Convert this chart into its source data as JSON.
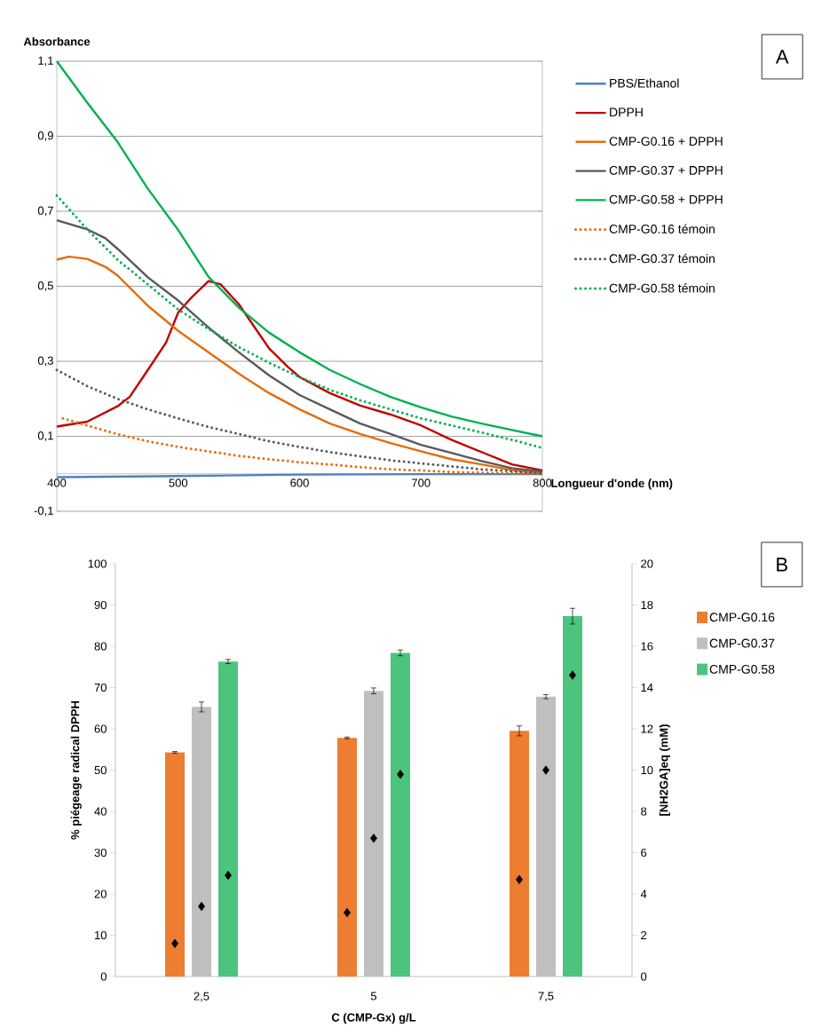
{
  "chart_data": [
    {
      "type": "line",
      "xlabel": "Longueur d'onde (nm)",
      "ylabel": "Absorbance",
      "annotations": [
        "A"
      ],
      "xlim": [
        400,
        800
      ],
      "ylim": [
        -0.1,
        1.1
      ],
      "xticks": [
        400,
        500,
        600,
        700,
        800
      ],
      "yticks": [
        {
          "value": -0.1,
          "label": "-0,1"
        },
        {
          "value": 0.1,
          "label": "0,1"
        },
        {
          "value": 0.3,
          "label": "0,3"
        },
        {
          "value": 0.5,
          "label": "0,5"
        },
        {
          "value": 0.7,
          "label": "0,7"
        },
        {
          "value": 0.9,
          "label": "0,9"
        },
        {
          "value": 1.1,
          "label": "1,1"
        }
      ],
      "grid": "y",
      "legend": "right",
      "marker": "none",
      "series": [
        {
          "name": "PBS/Ethanol",
          "color": "#4f81bd",
          "line_style": "solid",
          "x": [
            400,
            500,
            600,
            700,
            800
          ],
          "values": [
            -0.009,
            -0.006,
            -0.002,
            -0.001,
            -0.001
          ]
        },
        {
          "name": "DPPH",
          "color": "#c00000",
          "line_style": "solid",
          "x": [
            400,
            425,
            450,
            460,
            475,
            490,
            500,
            510,
            525,
            535,
            550,
            565,
            575,
            590,
            600,
            625,
            650,
            675,
            700,
            725,
            750,
            775,
            800
          ],
          "values": [
            0.126,
            0.139,
            0.18,
            0.205,
            0.277,
            0.35,
            0.43,
            0.467,
            0.514,
            0.505,
            0.452,
            0.381,
            0.334,
            0.286,
            0.258,
            0.215,
            0.182,
            0.158,
            0.129,
            0.091,
            0.058,
            0.025,
            0.009
          ]
        },
        {
          "name": "CMP-G0.16 + DPPH",
          "color": "#e46c0a",
          "line_style": "solid",
          "x": [
            400,
            410,
            425,
            440,
            450,
            475,
            500,
            525,
            550,
            575,
            600,
            625,
            650,
            675,
            700,
            725,
            750,
            775,
            800
          ],
          "values": [
            0.571,
            0.579,
            0.573,
            0.552,
            0.529,
            0.448,
            0.381,
            0.324,
            0.267,
            0.215,
            0.172,
            0.134,
            0.106,
            0.082,
            0.06,
            0.039,
            0.025,
            0.01,
            0.001
          ]
        },
        {
          "name": "CMP-G0.37 + DPPH",
          "color": "#595959",
          "line_style": "solid",
          "x": [
            400,
            425,
            440,
            450,
            475,
            500,
            525,
            550,
            575,
            600,
            625,
            650,
            675,
            700,
            725,
            750,
            775,
            800
          ],
          "values": [
            0.676,
            0.652,
            0.628,
            0.6,
            0.524,
            0.462,
            0.39,
            0.324,
            0.262,
            0.21,
            0.172,
            0.134,
            0.106,
            0.077,
            0.056,
            0.034,
            0.015,
            0.006
          ]
        },
        {
          "name": "CMP-G0.58 + DPPH",
          "color": "#00b050",
          "line_style": "solid",
          "x": [
            400,
            425,
            450,
            475,
            500,
            525,
            550,
            575,
            600,
            625,
            650,
            675,
            700,
            725,
            750,
            775,
            800
          ],
          "values": [
            1.1,
            0.99,
            0.885,
            0.76,
            0.65,
            0.525,
            0.443,
            0.376,
            0.324,
            0.277,
            0.239,
            0.205,
            0.177,
            0.153,
            0.134,
            0.117,
            0.1
          ]
        },
        {
          "name": "CMP-G0.16 témoin",
          "color": "#e46c0a",
          "line_style": "dotted",
          "x": [
            405,
            425,
            450,
            475,
            500,
            525,
            550,
            575,
            600,
            625,
            650,
            675,
            700,
            725,
            750,
            800
          ],
          "values": [
            0.148,
            0.129,
            0.106,
            0.087,
            0.072,
            0.06,
            0.048,
            0.039,
            0.031,
            0.025,
            0.018,
            0.012,
            0.009,
            0.005,
            0.003,
            0.0
          ]
        },
        {
          "name": "CMP-G0.37 témoin",
          "color": "#595959",
          "line_style": "dotted",
          "x": [
            400,
            425,
            450,
            475,
            500,
            525,
            550,
            575,
            600,
            625,
            650,
            675,
            700,
            725,
            750,
            775,
            800
          ],
          "values": [
            0.277,
            0.234,
            0.2,
            0.172,
            0.148,
            0.125,
            0.106,
            0.087,
            0.072,
            0.058,
            0.047,
            0.036,
            0.028,
            0.02,
            0.012,
            0.007,
            0.001
          ]
        },
        {
          "name": "CMP-G0.58 témoin",
          "color": "#00b050",
          "line_style": "dotted",
          "x": [
            400,
            425,
            450,
            475,
            500,
            525,
            550,
            575,
            600,
            625,
            650,
            675,
            700,
            725,
            750,
            775,
            800
          ],
          "values": [
            0.742,
            0.652,
            0.571,
            0.505,
            0.438,
            0.386,
            0.338,
            0.296,
            0.258,
            0.224,
            0.196,
            0.172,
            0.148,
            0.129,
            0.11,
            0.091,
            0.069
          ]
        }
      ]
    },
    {
      "type": "bar",
      "categories": [
        "2,5",
        "5",
        "7,5"
      ],
      "xlabel": "C (CMP-Gx) g/L",
      "ylabel": "% piégeage radical DPPH",
      "y2label": "[NH2GA]eq (mM)",
      "annotations": [
        "B"
      ],
      "ylim": [
        0,
        100
      ],
      "yticks": [
        0,
        10,
        20,
        30,
        40,
        50,
        60,
        70,
        80,
        90,
        100
      ],
      "y2lim": [
        0,
        20
      ],
      "y2ticks": [
        0,
        2,
        4,
        6,
        8,
        10,
        12,
        14,
        16,
        18,
        20
      ],
      "grid": false,
      "legend": "right",
      "series": [
        {
          "name": "CMP-G0.16",
          "color": "#ed7d31",
          "values": [
            54.3,
            57.8,
            59.5
          ],
          "errors": [
            0.2,
            0.2,
            1.2
          ]
        },
        {
          "name": "CMP-G0.37",
          "color": "#bfbfbf",
          "values": [
            65.3,
            69.2,
            67.8
          ],
          "errors": [
            1.2,
            0.7,
            0.5
          ]
        },
        {
          "name": "CMP-G0.58",
          "color": "#4cc47e",
          "values": [
            76.3,
            78.4,
            87.3
          ],
          "errors": [
            0.5,
            0.7,
            1.9
          ]
        },
        {
          "type": "scatter",
          "axis": "y2",
          "color": "#000000",
          "marker": "diamond",
          "x": [
            "2,5",
            "5",
            "7,5"
          ],
          "values": [
            1.6,
            3.1,
            4.7
          ]
        },
        {
          "type": "scatter",
          "axis": "y2",
          "color": "#000000",
          "marker": "diamond",
          "x": [
            "2,5",
            "5",
            "7,5"
          ],
          "values": [
            3.4,
            6.7,
            10.0
          ]
        },
        {
          "type": "scatter",
          "axis": "y2",
          "color": "#000000",
          "marker": "diamond",
          "x": [
            "2,5",
            "5",
            "7,5"
          ],
          "values": [
            4.9,
            9.8,
            14.6
          ]
        }
      ]
    }
  ]
}
